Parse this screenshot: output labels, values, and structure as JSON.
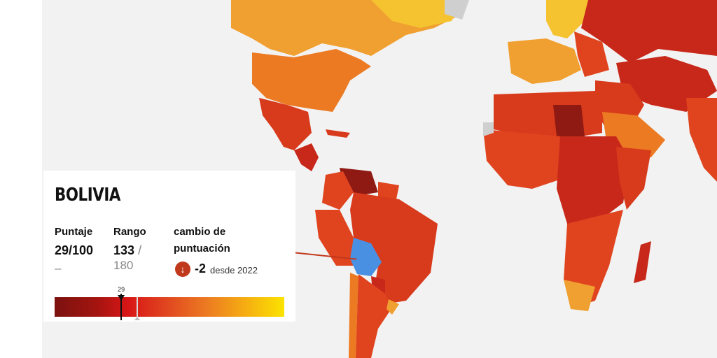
{
  "country": {
    "name": "BOLIVIA"
  },
  "score": {
    "label": "Puntaje",
    "value": "29/100",
    "sub": "–"
  },
  "rank": {
    "label": "Rango",
    "value": "133",
    "separator": "/",
    "total": "180"
  },
  "change": {
    "label_line1": "cambio de",
    "label_line2": "puntuación",
    "icon": "arrow-down-icon",
    "value": "-2",
    "since": "desde 2022",
    "color": "#c0391c"
  },
  "scale": {
    "marker_label": "29",
    "marker_value": 29,
    "min": 0,
    "max": 100
  },
  "colors": {
    "ocean": "#f2f2f2",
    "selected": "#4a90e2",
    "no_data": "#cfcfcf",
    "very_low": "#8f1a14",
    "low": "#c7281a",
    "mid_low": "#e0441f",
    "mid": "#ec7a22",
    "mid_high": "#f0a030",
    "high": "#f5c230",
    "very_high": "#fbe300"
  }
}
